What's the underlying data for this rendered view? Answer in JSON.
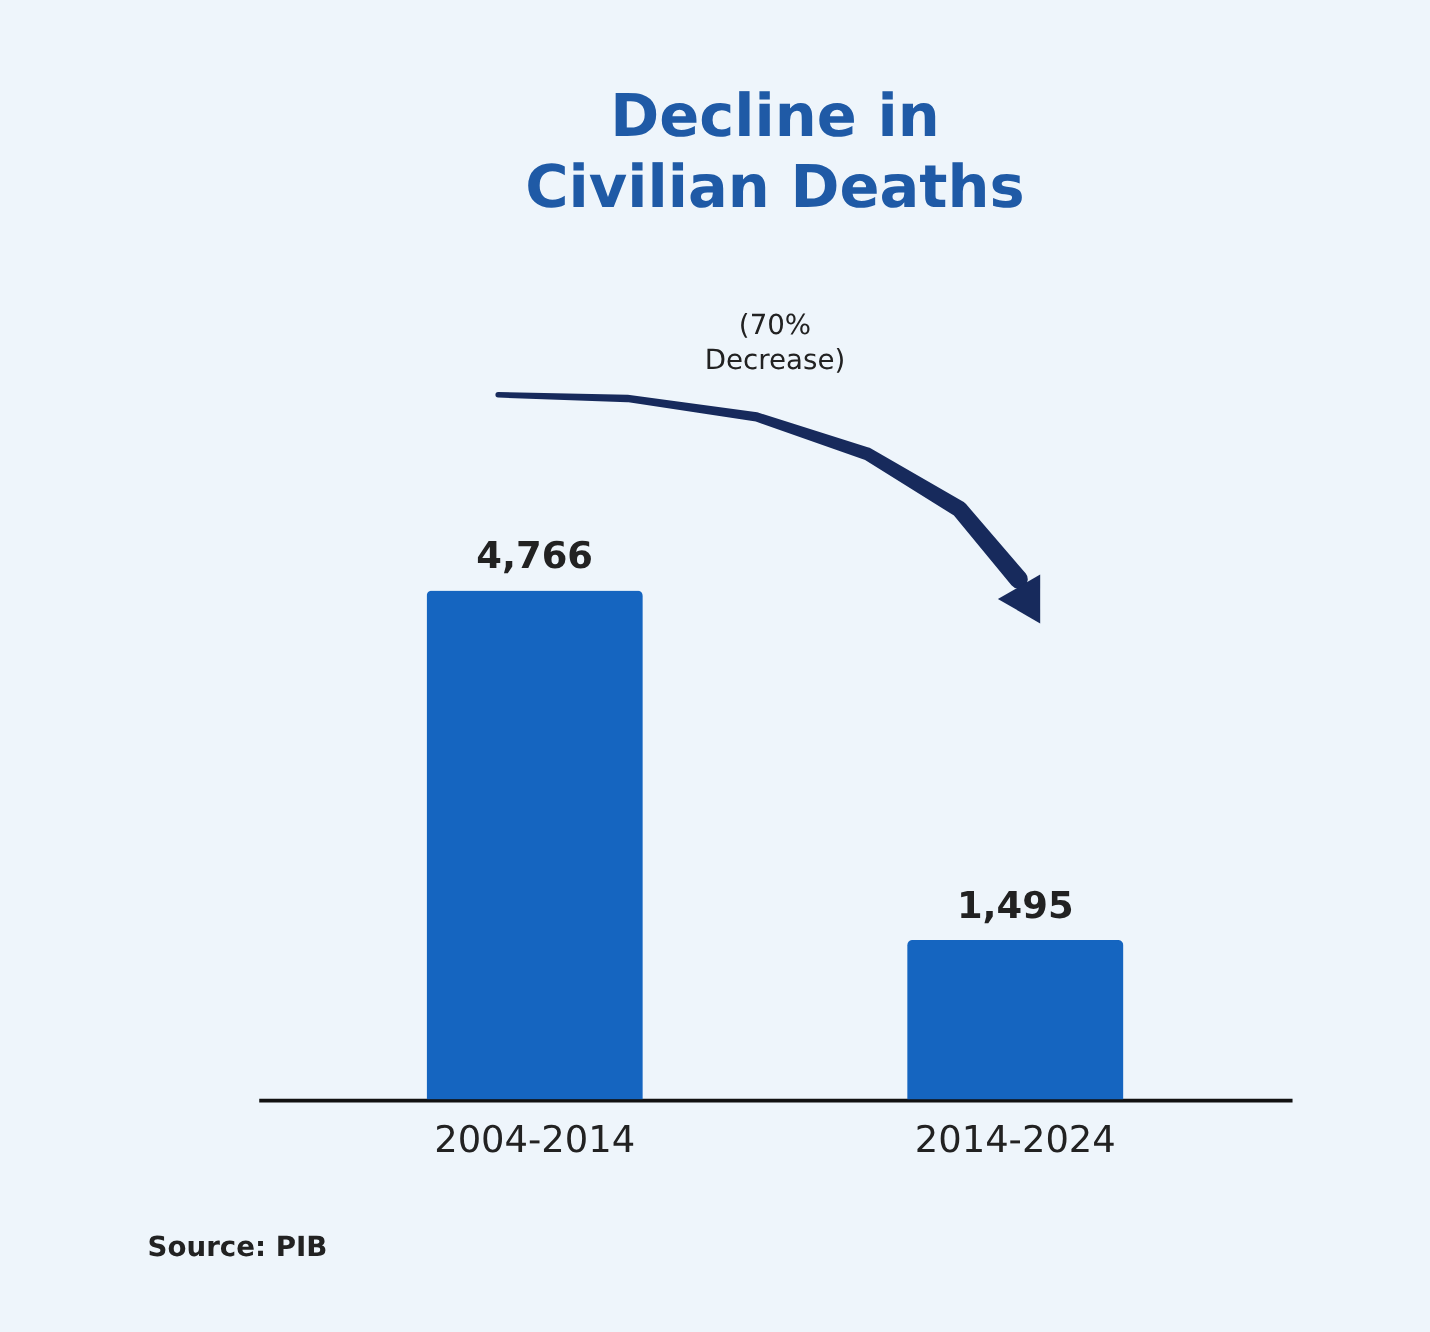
{
  "chart_data": {
    "type": "bar",
    "title": [
      "Decline in",
      "Civilian Deaths"
    ],
    "categories": [
      "2004-2014",
      "2014-2024"
    ],
    "values": [
      4766,
      1495
    ],
    "color": "#1565c0",
    "value_labels": [
      "4,766",
      "1,495"
    ],
    "grid": false,
    "tick_labels": "x",
    "annotations": [
      "(70%\nDecrease)",
      "Source: PIB"
    ]
  }
}
